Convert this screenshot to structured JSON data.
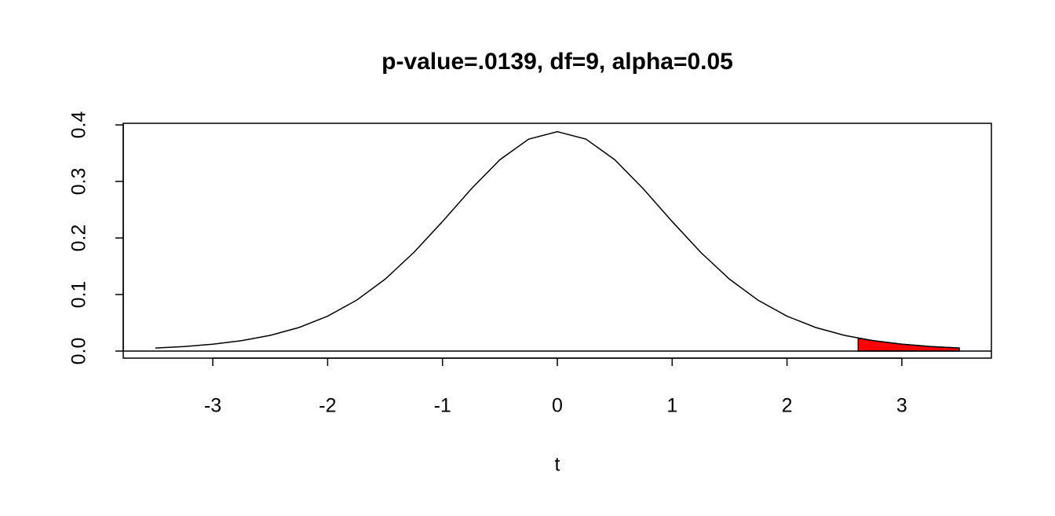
{
  "chart_data": {
    "type": "line",
    "title": "p-value=.0139, df=9, alpha=0.05",
    "x_label": "t",
    "x": [
      -3.5,
      -3.25,
      -3,
      -2.75,
      -2.5,
      -2.25,
      -2,
      -1.75,
      -1.5,
      -1.25,
      -1,
      -0.75,
      -0.5,
      -0.25,
      0,
      0.25,
      0.5,
      0.75,
      1,
      1.25,
      1.5,
      1.75,
      2,
      2.25,
      2.5,
      2.75,
      3,
      3.25,
      3.5
    ],
    "series": [
      {
        "color": "#000000",
        "fill": false,
        "values": [
          0.0053,
          0.008,
          0.0121,
          0.0184,
          0.0278,
          0.0417,
          0.0617,
          0.0897,
          0.1271,
          0.1743,
          0.2291,
          0.2866,
          0.3384,
          0.3748,
          0.388,
          0.3748,
          0.3384,
          0.2866,
          0.2291,
          0.1743,
          0.1271,
          0.0897,
          0.0617,
          0.0417,
          0.0278,
          0.0184,
          0.0121,
          0.008,
          0.0053
        ]
      },
      {
        "color": "#ff0000",
        "fill": true,
        "x": [
          2.62,
          2.75,
          3,
          3.25,
          3.5
        ],
        "values": [
          0.0228,
          0.0184,
          0.0121,
          0.008,
          0.0053
        ]
      }
    ],
    "hline": 0,
    "xlim": [
      -3.78,
      3.78
    ],
    "xticks": [
      -3,
      -2,
      -1,
      0,
      1,
      2,
      3
    ],
    "ylim": [
      -0.0125,
      0.4028
    ],
    "yticks": [
      {
        "value": 0,
        "label": "0.0"
      },
      0.1,
      0.2,
      0.3,
      0.4
    ]
  }
}
